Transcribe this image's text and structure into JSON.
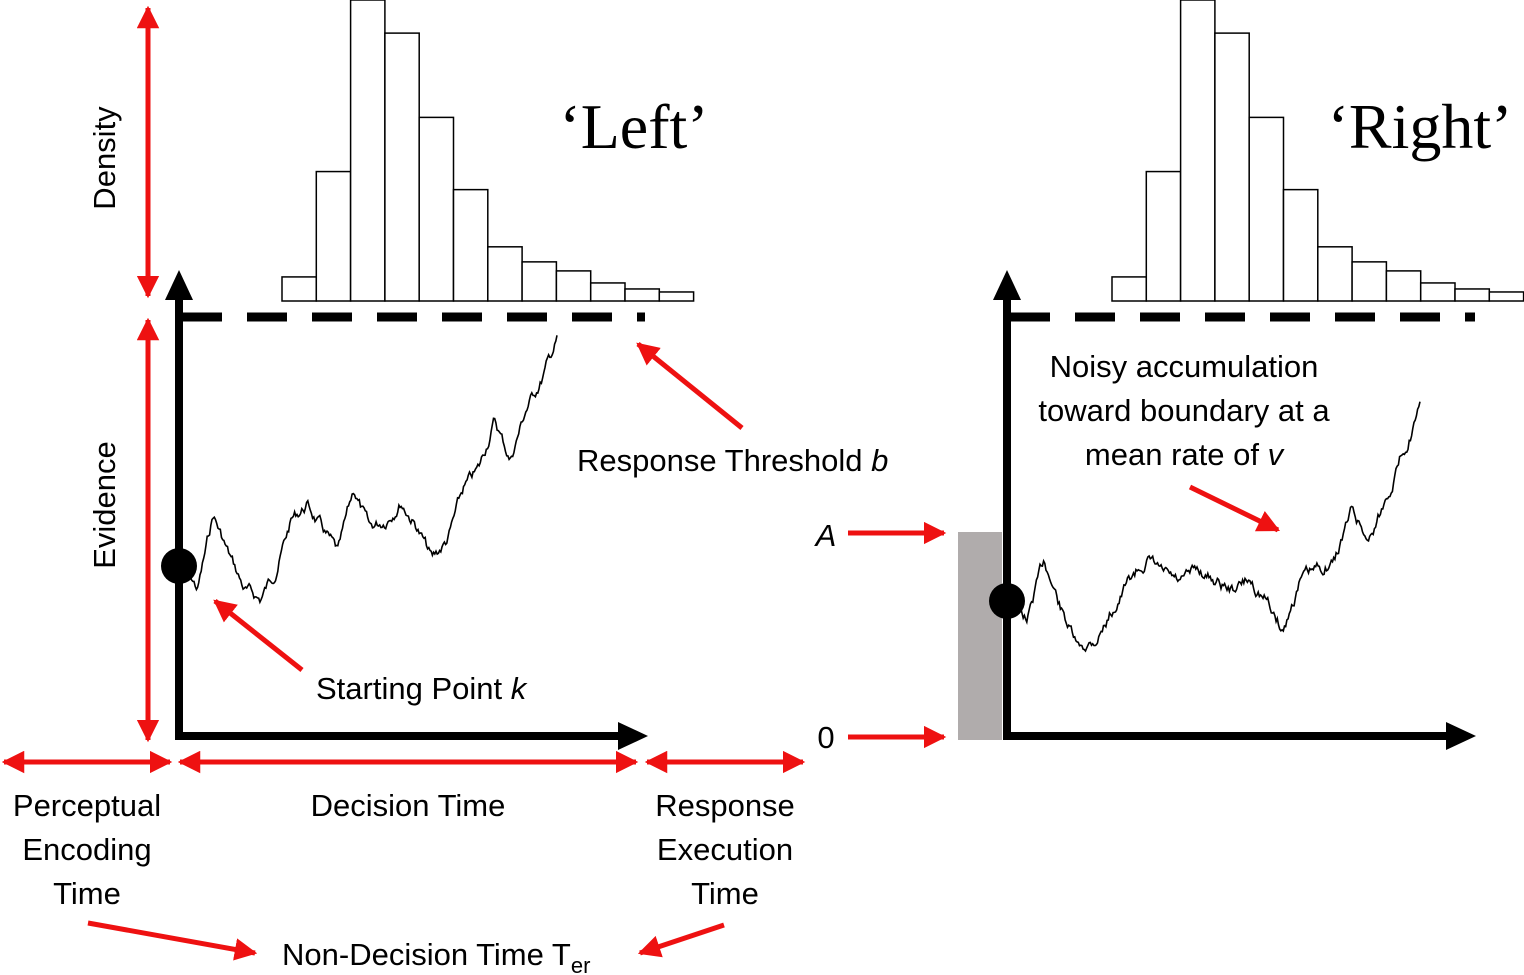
{
  "left_panel": {
    "title": "‘Left’",
    "histogram_densities": [
      0.08,
      0.43,
      1.0,
      0.89,
      0.61,
      0.37,
      0.18,
      0.13,
      0.1,
      0.06,
      0.04,
      0.03
    ]
  },
  "right_panel": {
    "title": "‘Right’",
    "histogram_densities": [
      0.08,
      0.43,
      1.0,
      0.89,
      0.61,
      0.37,
      0.18,
      0.13,
      0.1,
      0.06,
      0.04,
      0.03
    ]
  },
  "axis_labels": {
    "density": "Density",
    "evidence": "Evidence"
  },
  "annotations": {
    "response_threshold": "Response Threshold ",
    "response_threshold_var": "b",
    "starting_point": "Starting Point ",
    "starting_point_var": "k",
    "noisy_line1": "Noisy accumulation",
    "noisy_line2": "toward boundary at a",
    "noisy_line3_prefix": "mean rate of ",
    "noisy_line3_var": "v",
    "a_label": "A",
    "zero_label": "0"
  },
  "time_labels": {
    "perceptual_line1": "Perceptual",
    "perceptual_line2": "Encoding",
    "perceptual_line3": "Time",
    "decision": "Decision Time",
    "response_line1": "Response",
    "response_line2": "Execution",
    "response_line3": "Time",
    "non_decision": "Non-Decision Time T",
    "non_decision_sub": "er"
  },
  "colors": {
    "accent_red": "#ee1111",
    "axis": "#000000",
    "start_range_fill": "#b0acac"
  }
}
